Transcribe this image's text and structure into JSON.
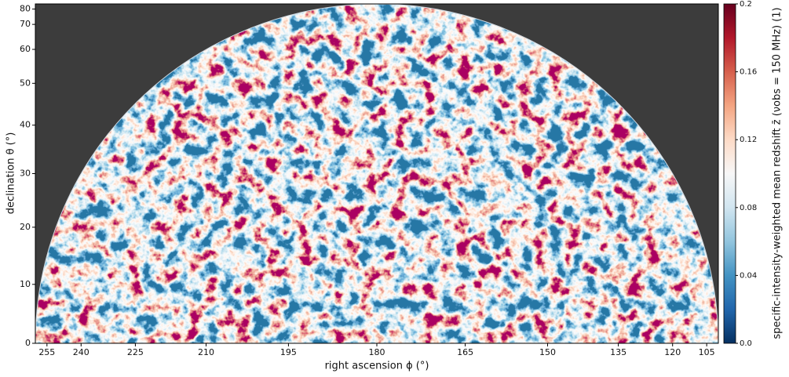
{
  "chart_data": {
    "type": "sky-map",
    "xlabel": "right ascension ϕ (°)",
    "ylabel": "declination θ (°)",
    "xlim": [
      270,
      90
    ],
    "xticks": [
      255,
      240,
      225,
      210,
      195,
      180,
      165,
      150,
      135,
      120,
      105
    ],
    "ylim": [
      0,
      90
    ],
    "yticks": [
      0,
      10,
      20,
      30,
      40,
      50,
      60,
      70,
      80
    ],
    "projection": "sine",
    "background": "#3c3c3c",
    "colorbar": {
      "label": "specific-intensity-weighted mean redshift z̄ (νobs = 150 MHz) (1)",
      "lim": [
        0,
        0.2
      ],
      "ticks": [
        {
          "value": 0,
          "label": "0.0"
        },
        0.04,
        0.08,
        0.12,
        0.16,
        0.2
      ],
      "colormap": [
        "#053061",
        "#2166ac",
        "#4393c3",
        "#92c5de",
        "#d1e5f0",
        "#f7f7f7",
        "#fddbc7",
        "#f4a582",
        "#d6604d",
        "#b2182b",
        "#67001f"
      ]
    }
  }
}
